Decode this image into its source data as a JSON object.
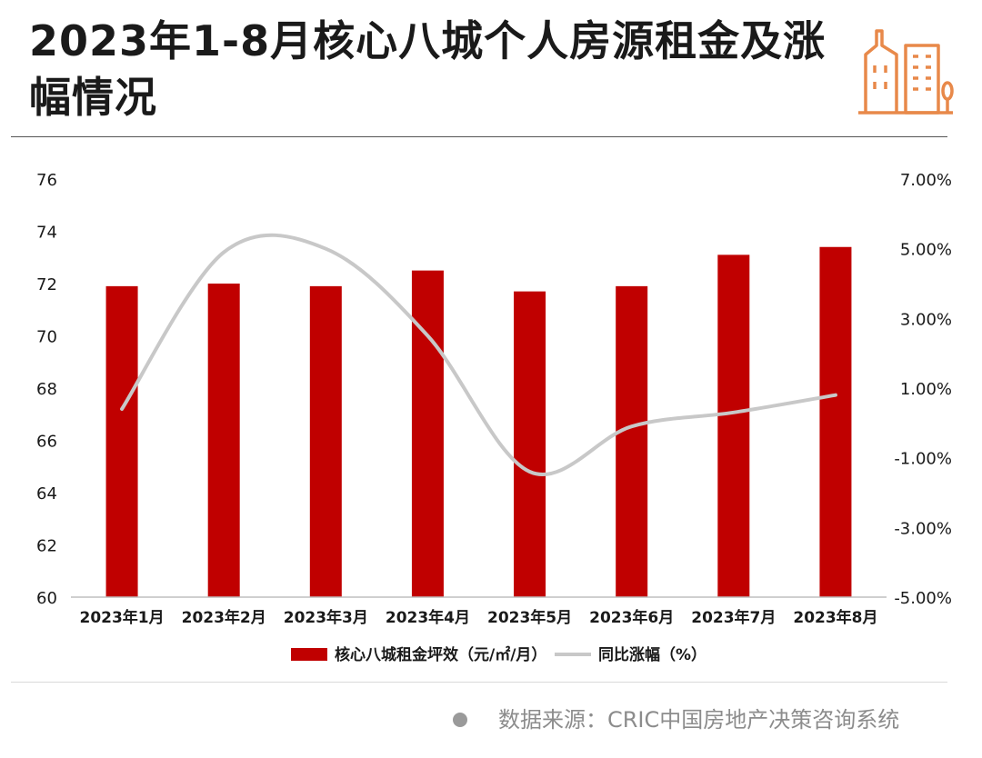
{
  "title": "2023年1-8月核心八城个人房源租金及涨幅情况",
  "source": "数据来源：CRIC中国房地产决策咨询系统",
  "colors": {
    "bar": "#c00000",
    "line": "#c8c8c8",
    "logo": "#e8894a",
    "axis_text": "#1a1a1a"
  },
  "icons": {
    "logo": "building-icon"
  },
  "chart_data": {
    "type": "bar",
    "categories": [
      "2023年1月",
      "2023年2月",
      "2023年3月",
      "2023年4月",
      "2023年5月",
      "2023年6月",
      "2023年7月",
      "2023年8月"
    ],
    "series": [
      {
        "name": "核心八城租金坪效（元/㎡/月）",
        "type": "bar",
        "axis": "left",
        "values": [
          71.9,
          72.0,
          71.9,
          72.5,
          71.7,
          71.9,
          73.1,
          73.4
        ]
      },
      {
        "name": "同比涨幅（%）",
        "type": "line",
        "axis": "right",
        "values": [
          0.4,
          4.9,
          5.0,
          2.5,
          -1.4,
          -0.1,
          0.3,
          0.8
        ]
      }
    ],
    "y_left": {
      "range": [
        60,
        76
      ],
      "ticks": [
        "60",
        "62",
        "64",
        "66",
        "68",
        "70",
        "72",
        "74",
        "76"
      ]
    },
    "y_right": {
      "range": [
        -5,
        7
      ],
      "ticks": [
        "-5.00%",
        "-3.00%",
        "-1.00%",
        "1.00%",
        "3.00%",
        "5.00%",
        "7.00%"
      ]
    },
    "grid": false,
    "legend_position": "bottom"
  }
}
